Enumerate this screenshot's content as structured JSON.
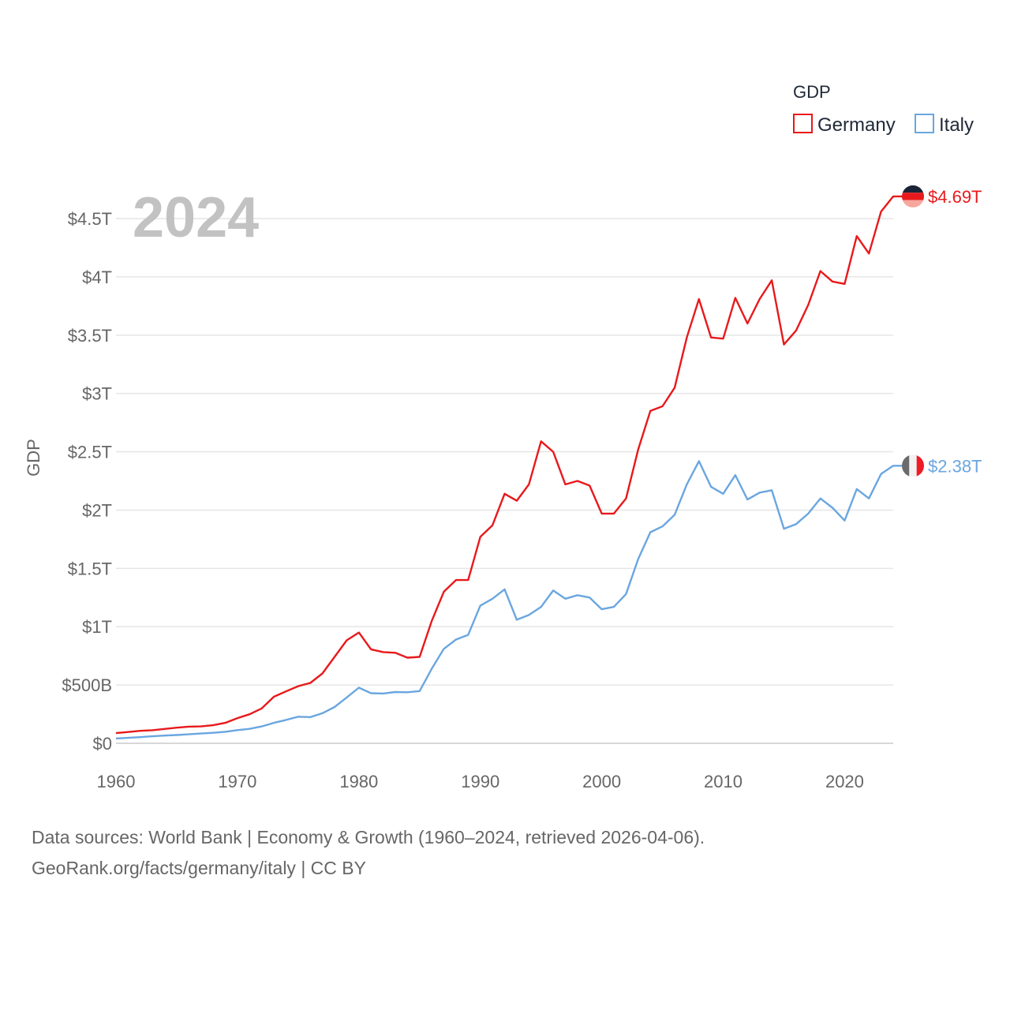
{
  "chart_data": {
    "type": "line",
    "title": "2024",
    "ylabel": "GDP",
    "xlabel": "",
    "xlim": [
      1960,
      2024
    ],
    "ylim": [
      0,
      4.8
    ],
    "x_ticks": [
      1960,
      1970,
      1980,
      1990,
      2000,
      2010,
      2020
    ],
    "y_ticks": [
      0,
      0.5,
      1,
      1.5,
      2,
      2.5,
      3,
      3.5,
      4,
      4.5
    ],
    "y_tick_labels": [
      "$0",
      "$500B",
      "$1T",
      "$1.5T",
      "$2T",
      "$2.5T",
      "$3T",
      "$3.5T",
      "$4T",
      "$4.5T"
    ],
    "legend": {
      "title": "GDP",
      "position": "top-right",
      "entries": [
        "Germany",
        "Italy"
      ]
    },
    "x": [
      1960,
      1961,
      1962,
      1963,
      1964,
      1965,
      1966,
      1967,
      1968,
      1969,
      1970,
      1971,
      1972,
      1973,
      1974,
      1975,
      1976,
      1977,
      1978,
      1979,
      1980,
      1981,
      1982,
      1983,
      1984,
      1985,
      1986,
      1987,
      1988,
      1989,
      1990,
      1991,
      1992,
      1993,
      1994,
      1995,
      1996,
      1997,
      1998,
      1999,
      2000,
      2001,
      2002,
      2003,
      2004,
      2005,
      2006,
      2007,
      2008,
      2009,
      2010,
      2011,
      2012,
      2013,
      2014,
      2015,
      2016,
      2017,
      2018,
      2019,
      2020,
      2021,
      2022,
      2023,
      2024
    ],
    "series": [
      {
        "name": "Germany",
        "color": "#e8191c",
        "end_label": "$4.69T",
        "flag": "germany-flag-icon",
        "values": [
          0.087,
          0.097,
          0.107,
          0.112,
          0.123,
          0.134,
          0.143,
          0.145,
          0.155,
          0.175,
          0.216,
          0.249,
          0.299,
          0.399,
          0.445,
          0.49,
          0.518,
          0.599,
          0.741,
          0.883,
          0.95,
          0.806,
          0.782,
          0.776,
          0.734,
          0.741,
          1.05,
          1.3,
          1.4,
          1.4,
          1.77,
          1.87,
          2.14,
          2.08,
          2.22,
          2.59,
          2.5,
          2.22,
          2.25,
          2.21,
          1.97,
          1.97,
          2.1,
          2.52,
          2.85,
          2.89,
          3.05,
          3.48,
          3.81,
          3.48,
          3.47,
          3.82,
          3.6,
          3.81,
          3.97,
          3.42,
          3.54,
          3.76,
          4.05,
          3.96,
          3.94,
          4.35,
          4.2,
          4.56,
          4.69
        ]
      },
      {
        "name": "Italy",
        "color": "#6aa6e0",
        "end_label": "$2.38T",
        "flag": "italy-flag-icon",
        "values": [
          0.041,
          0.047,
          0.053,
          0.06,
          0.066,
          0.071,
          0.077,
          0.084,
          0.09,
          0.099,
          0.113,
          0.124,
          0.145,
          0.175,
          0.2,
          0.228,
          0.225,
          0.258,
          0.311,
          0.393,
          0.477,
          0.43,
          0.427,
          0.44,
          0.438,
          0.448,
          0.64,
          0.81,
          0.89,
          0.93,
          1.18,
          1.24,
          1.32,
          1.06,
          1.1,
          1.17,
          1.31,
          1.24,
          1.27,
          1.25,
          1.15,
          1.17,
          1.28,
          1.58,
          1.81,
          1.86,
          1.96,
          2.22,
          2.42,
          2.2,
          2.14,
          2.3,
          2.09,
          2.15,
          2.17,
          1.84,
          1.88,
          1.97,
          2.1,
          2.02,
          1.91,
          2.18,
          2.1,
          2.31,
          2.38
        ]
      }
    ]
  },
  "footer": {
    "line1": "Data sources: World Bank | Economy & Growth (1960–2024, retrieved 2026-04-06).",
    "line2": "GeoRank.org/facts/germany/italy | CC BY"
  }
}
